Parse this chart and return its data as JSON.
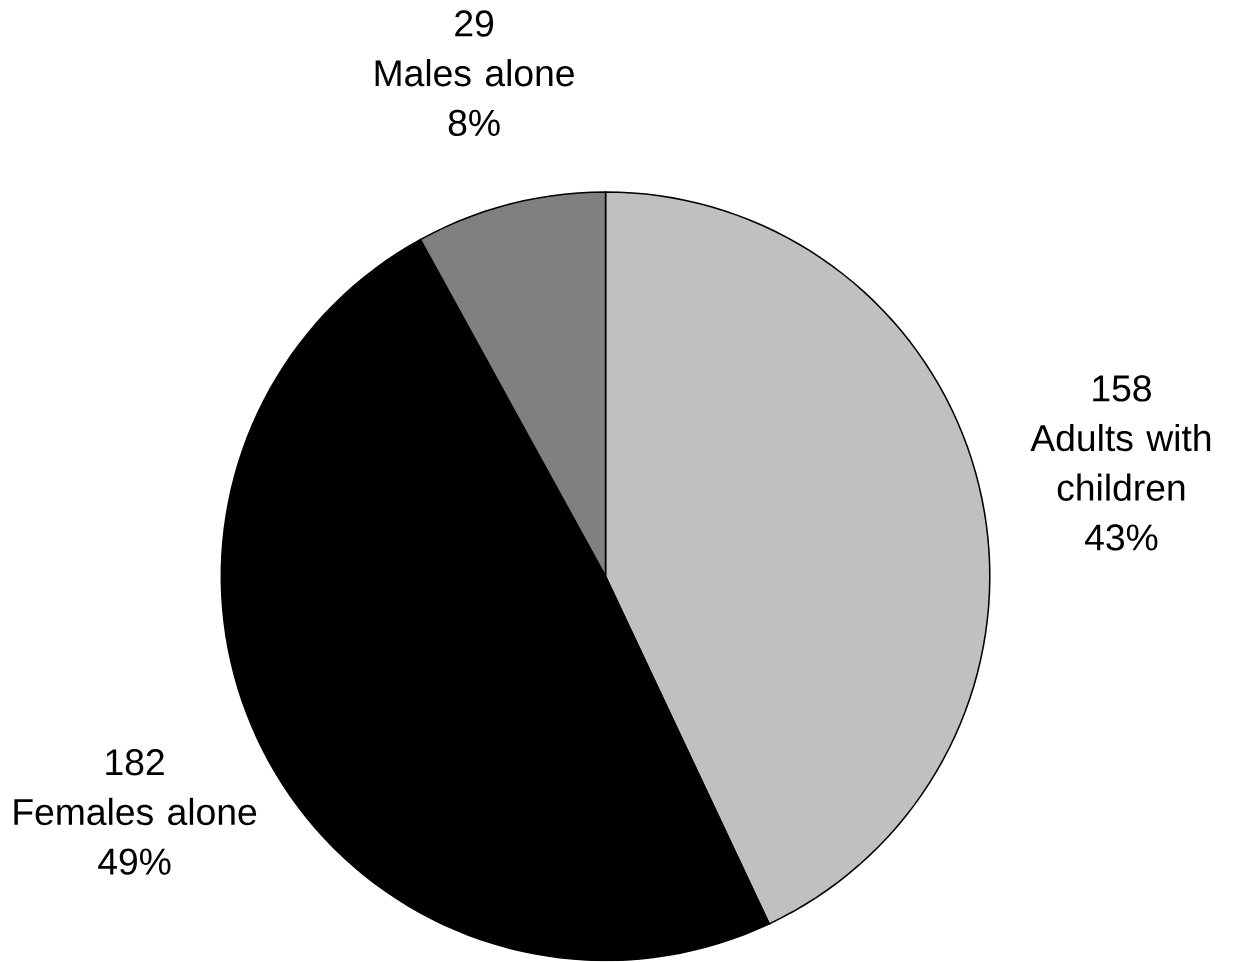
{
  "chart_data": {
    "type": "pie",
    "categories": [
      "Adults with children",
      "Females alone",
      "Males alone"
    ],
    "values": [
      43,
      49,
      8
    ],
    "colors": [
      "#c0c0c0",
      "#000000",
      "#808080"
    ],
    "value_labels": [
      "43%",
      "49%",
      "8%"
    ],
    "annotations": [
      "158",
      "182",
      "29"
    ]
  }
}
